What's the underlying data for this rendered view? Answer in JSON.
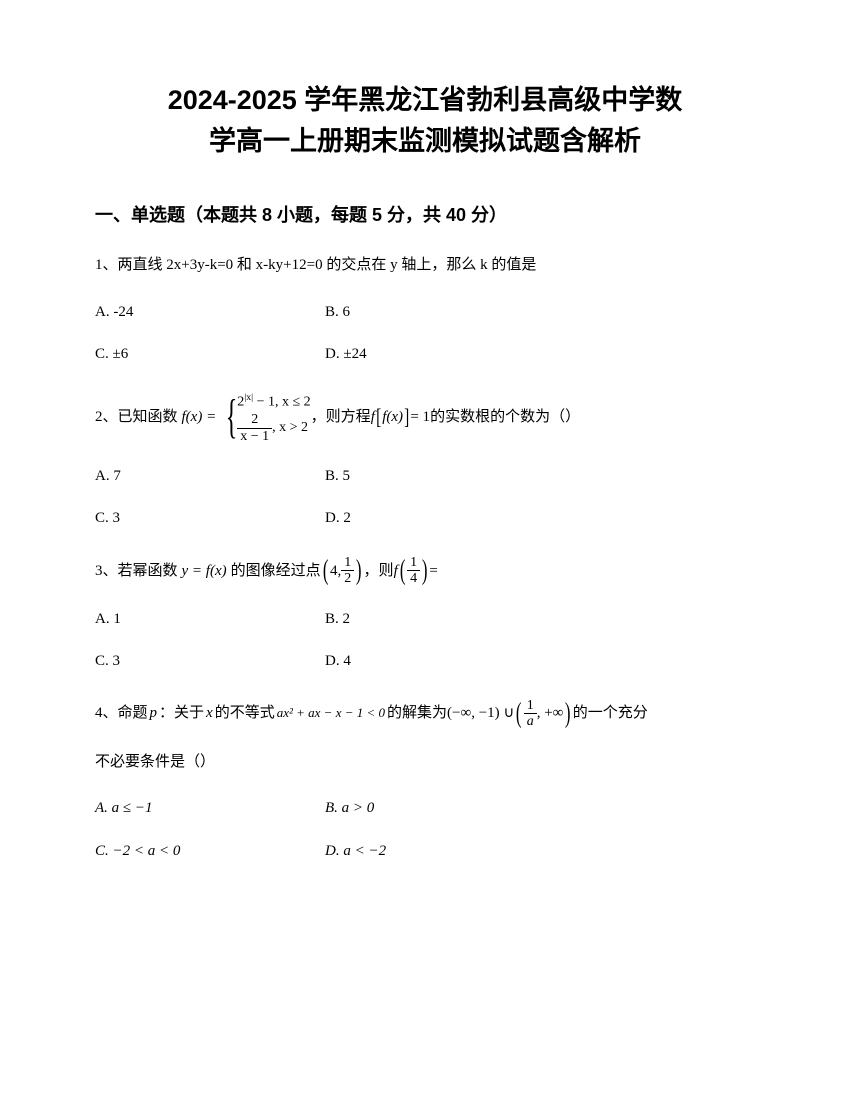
{
  "title_line1": "2024-2025 学年黑龙江省勃利县高级中学数",
  "title_line2": "学高一上册期末监测模拟试题含解析",
  "section1_header": "一、单选题（本题共 8 小题，每题 5 分，共 40 分）",
  "q1": {
    "stem": "1、两直线 2x+3y-k=0 和 x-ky+12=0 的交点在 y 轴上，那么 k 的值是",
    "optA": "A. -24",
    "optB": "B. 6",
    "optC": "C. ±6",
    "optD": "D. ±24"
  },
  "q2": {
    "prefix": "2、已知函数",
    "func_label": "f(x) =",
    "piece1_a": "2",
    "piece1_exp": "|x|",
    "piece1_b": " − 1, x ≤ 2",
    "piece2_num": "2",
    "piece2_den": "x − 1",
    "piece2_cond": ", x > 2",
    "mid": "，则方程",
    "eq_left": "f",
    "eq_inner": "f(x)",
    "eq_right": " = 1",
    "suffix": "的实数根的个数为（）",
    "optA": "A. 7",
    "optB": "B. 5",
    "optC": "C. 3",
    "optD": "D. 2"
  },
  "q3": {
    "prefix": "3、若幂函数",
    "func": "y = f(x)",
    "mid1": "的图像经过点",
    "pt_a": "4,",
    "pt_num": "1",
    "pt_den": "2",
    "mid2": "，则",
    "rhs_f": "f",
    "rhs_num": "1",
    "rhs_den": "4",
    "suffix": " =",
    "optA": "A. 1",
    "optB": "B. 2",
    "optC": "C. 3",
    "optD": "D. 4"
  },
  "q4": {
    "prefix": "4、命题",
    "p_label": "p",
    "mid1": "：关于",
    "x_var": "x",
    "mid2": "的不等式",
    "ineq": "ax² + ax − x − 1 < 0",
    "mid3": "的解集为",
    "set_a": "(−∞, −1) ∪",
    "set_num": "1",
    "set_den": "a",
    "set_b": ", +∞",
    "suffix1": "的一个充分",
    "line2": "不必要条件是（）",
    "optA": "A.  a ≤ −1",
    "optB": "B.  a > 0",
    "optC": "C.  −2 < a < 0",
    "optD": "D.  a < −2"
  }
}
